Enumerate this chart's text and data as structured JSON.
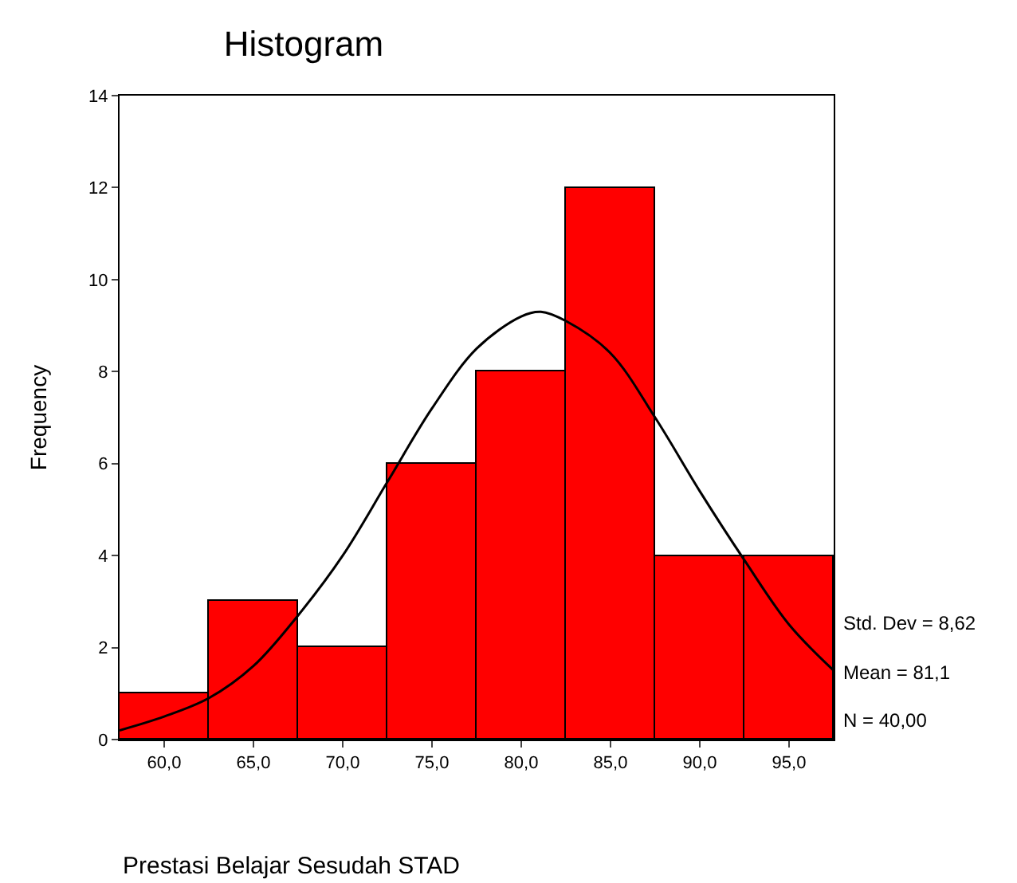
{
  "chart_data": {
    "type": "histogram",
    "title": "Histogram",
    "xlabel": "Prestasi Belajar Sesudah STAD",
    "ylabel": "Frequency",
    "bins": [
      57.5,
      62.5,
      67.5,
      72.5,
      77.5,
      82.5,
      87.5,
      92.5,
      97.5
    ],
    "values": [
      1,
      3,
      2,
      6,
      8,
      12,
      4,
      4
    ],
    "color": "#ff0000",
    "series": [
      {
        "type": "line",
        "color": "#000000",
        "x": [
          57.5,
          60,
          62.5,
          65,
          67.5,
          70,
          72.5,
          75,
          77.5,
          80,
          81.1,
          82.5,
          85,
          87.5,
          90,
          92.5,
          95,
          97.5
        ],
        "values": [
          0.2,
          0.5,
          0.9,
          1.6,
          2.7,
          4.0,
          5.6,
          7.2,
          8.5,
          9.2,
          9.3,
          9.1,
          8.4,
          7.0,
          5.4,
          3.9,
          2.5,
          1.5
        ]
      }
    ],
    "xlim": [
      57.5,
      97.5
    ],
    "xticks": [
      {
        "value": 60,
        "label": "60,0"
      },
      {
        "value": 65,
        "label": "65,0"
      },
      {
        "value": 70,
        "label": "70,0"
      },
      {
        "value": 75,
        "label": "75,0"
      },
      {
        "value": 80,
        "label": "80,0"
      },
      {
        "value": 85,
        "label": "85,0"
      },
      {
        "value": 90,
        "label": "90,0"
      },
      {
        "value": 95,
        "label": "95,0"
      }
    ],
    "ylim": [
      0,
      14
    ],
    "yticks": [
      0,
      2,
      4,
      6,
      8,
      10,
      12,
      14
    ],
    "annotations": [
      "Std. Dev = 8,62",
      "Mean = 81,1",
      "N = 40,00"
    ]
  }
}
